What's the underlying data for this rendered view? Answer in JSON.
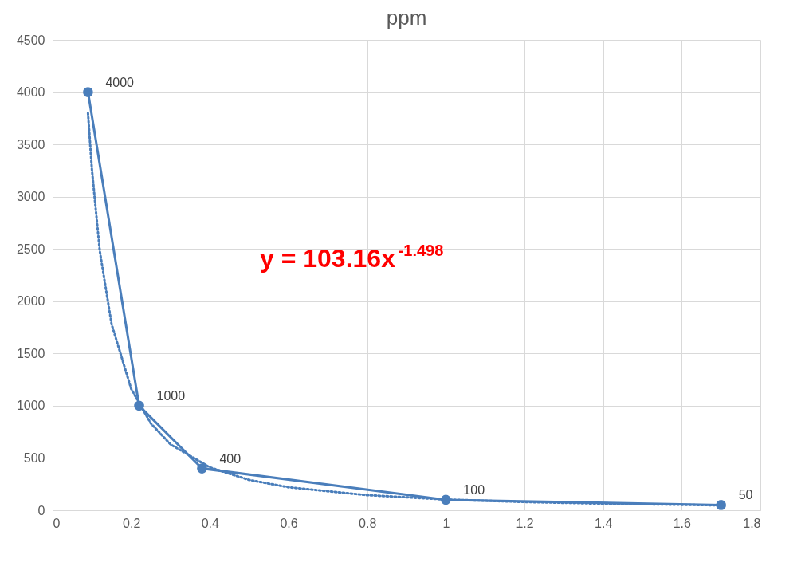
{
  "chart_data": {
    "type": "line",
    "title": "ppm",
    "grid": true,
    "marker": "circle",
    "data_labels": true,
    "xlim": [
      0,
      1.8
    ],
    "xticks": [
      0,
      0.2,
      0.4,
      0.6,
      0.8,
      1,
      1.2,
      1.4,
      1.6,
      1.8
    ],
    "ylim": [
      0,
      4500
    ],
    "yticks": [
      0,
      500,
      1000,
      1500,
      2000,
      2500,
      3000,
      3500,
      4000,
      4500
    ],
    "annotations": [
      "y = 103.16x$^{-1.498}$"
    ],
    "series": [
      {
        "color": "#4a7ebb",
        "line_style": "solid",
        "x": [
          0.09,
          0.22,
          0.38,
          1.0,
          1.7
        ],
        "values": [
          4000,
          1000,
          400,
          100,
          50
        ]
      },
      {
        "color": "#4a7ebb",
        "line_style": "dotted",
        "marker": "none",
        "data_labels": false,
        "x": [
          0.09,
          0.1,
          0.12,
          0.15,
          0.2,
          0.25,
          0.3,
          0.4,
          0.5,
          0.6,
          0.8,
          1.0,
          1.2,
          1.4,
          1.7
        ],
        "values": [
          3800,
          3260,
          2480,
          1780,
          1160,
          830,
          630,
          410,
          290,
          220,
          145,
          103,
          79,
          63,
          47
        ]
      }
    ]
  }
}
